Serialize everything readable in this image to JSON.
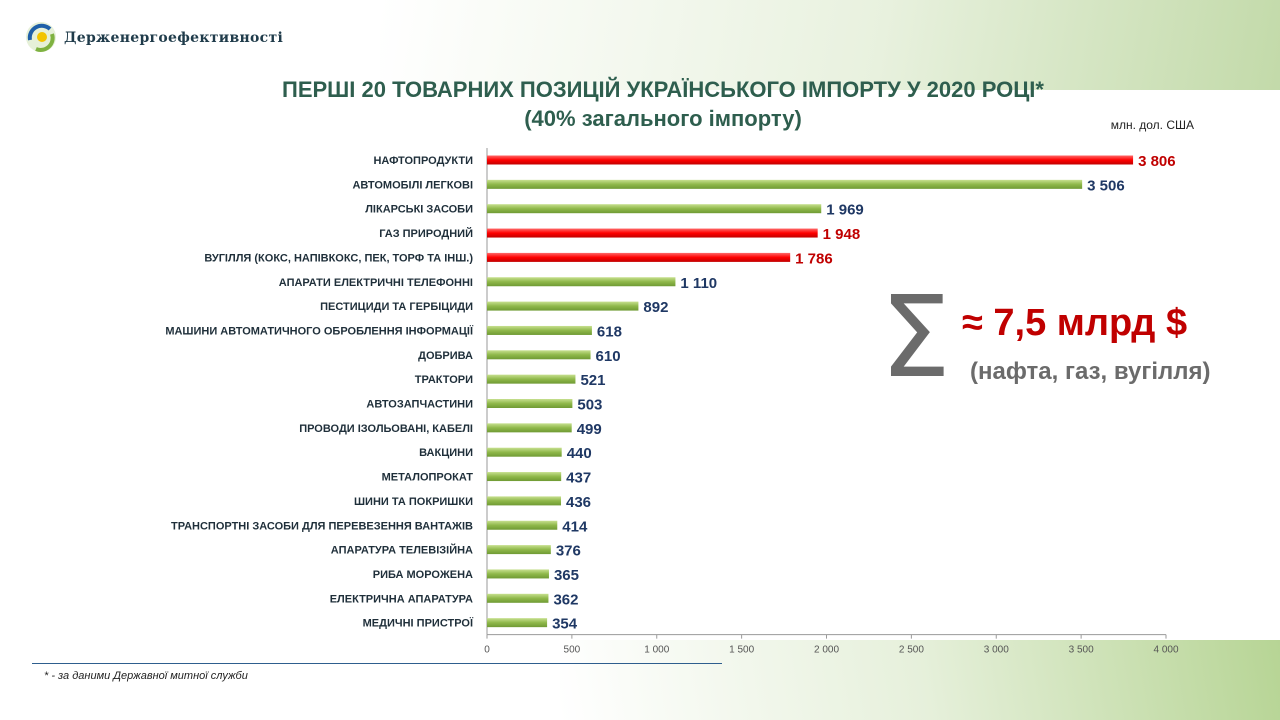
{
  "header": {
    "org_name": "Держенергоефективності"
  },
  "title_line1": "ПЕРШІ 20 ТОВАРНИХ ПОЗИЦІЙ УКРАЇНСЬКОГО ІМПОРТУ У 2020 РОЦІ*",
  "title_line2": "(40% загального імпорту)",
  "unit": "млн. дол. США",
  "summary": {
    "sigma": "Σ",
    "value": "≈ 7,5 млрд $",
    "note": "(нафта, газ, вугілля)"
  },
  "footnote": "* - за даними Державної митної служби",
  "colors": {
    "highlight": "#ff0000",
    "normal": "#8fb84a",
    "highlight_label": "#c00000",
    "normal_label": "#1f3864"
  },
  "chart_data": {
    "type": "bar",
    "orientation": "horizontal",
    "categories": [
      "НАФТОПРОДУКТИ",
      "АВТОМОБІЛІ ЛЕГКОВІ",
      "ЛІКАРСЬКІ ЗАСОБИ",
      "ГАЗ ПРИРОДНИЙ",
      "ВУГІЛЛЯ (КОКС, НАПІВКОКС, ПЕК, ТОРФ ТА ІНШ.)",
      "АПАРАТИ ЕЛЕКТРИЧНІ ТЕЛЕФОННІ",
      "ПЕСТИЦИДИ ТА ГЕРБІЦИДИ",
      "МАШИНИ АВТОМАТИЧНОГО ОБРОБЛЕННЯ ІНФОРМАЦІЇ",
      "ДОБРИВА",
      "ТРАКТОРИ",
      "АВТОЗАПЧАСТИНИ",
      "ПРОВОДИ ІЗОЛЬОВАНІ, КАБЕЛІ",
      "ВАКЦИНИ",
      "МЕТАЛОПРОКАТ",
      "ШИНИ ТА ПОКРИШКИ",
      "ТРАНСПОРТНІ ЗАСОБИ ДЛЯ ПЕРЕВЕЗЕННЯ ВАНТАЖІВ",
      "АПАРАТУРА ТЕЛЕВІЗІЙНА",
      "РИБА МОРОЖЕНА",
      "ЕЛЕКТРИЧНА АПАРАТУРА",
      "МЕДИЧНІ ПРИСТРОЇ"
    ],
    "values": [
      3806,
      3506,
      1969,
      1948,
      1786,
      1110,
      892,
      618,
      610,
      521,
      503,
      499,
      440,
      437,
      436,
      414,
      376,
      365,
      362,
      354
    ],
    "value_labels": [
      "3 806",
      "3 506",
      "1 969",
      "1 948",
      "1 786",
      "1 110",
      "892",
      "618",
      "610",
      "521",
      "503",
      "499",
      "440",
      "437",
      "436",
      "414",
      "376",
      "365",
      "362",
      "354"
    ],
    "highlighted": [
      true,
      false,
      false,
      true,
      true,
      false,
      false,
      false,
      false,
      false,
      false,
      false,
      false,
      false,
      false,
      false,
      false,
      false,
      false,
      false
    ],
    "xlim": [
      0,
      4000
    ],
    "xticks": [
      0,
      500,
      1000,
      1500,
      2000,
      2500,
      3000,
      3500,
      4000
    ],
    "xtick_labels": [
      "0",
      "500",
      "1 000",
      "1 500",
      "2 000",
      "2 500",
      "3 000",
      "3 500",
      "4 000"
    ],
    "grid": false,
    "legend": "none"
  }
}
